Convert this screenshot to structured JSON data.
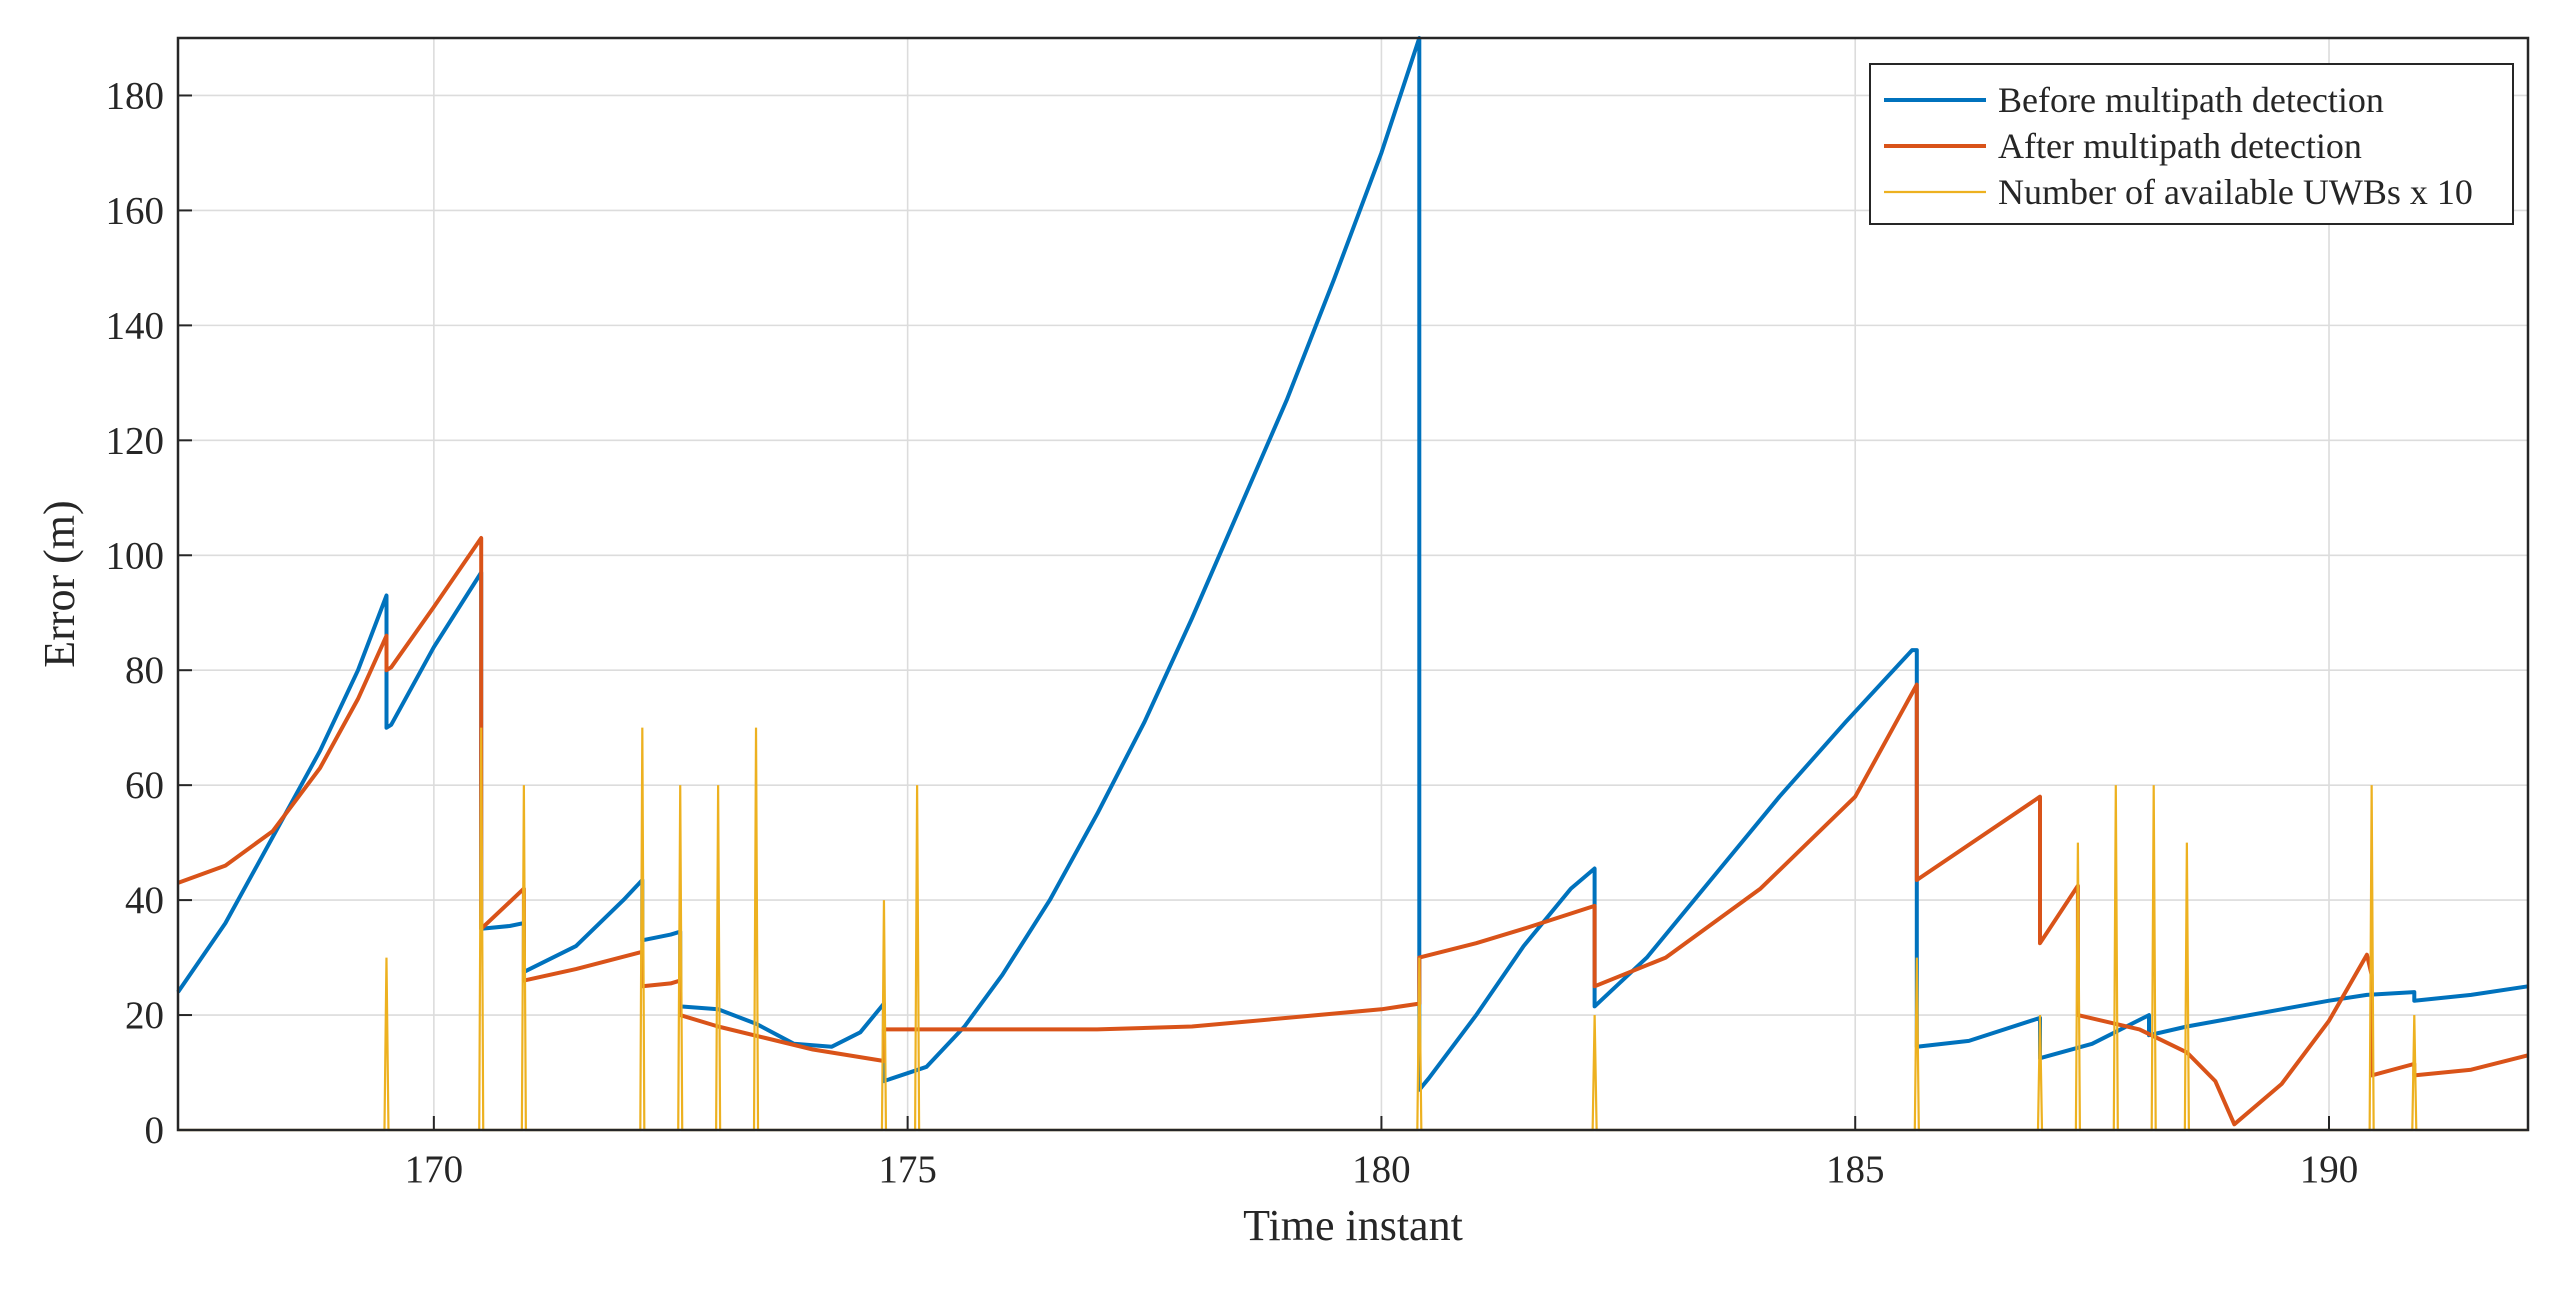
{
  "chart_data": {
    "type": "line",
    "title": "",
    "xlabel": "Time instant",
    "ylabel": "Error (m)",
    "xlim": [
      167.3,
      192.1
    ],
    "ylim": [
      0,
      190
    ],
    "xticks": [
      170,
      175,
      180,
      185,
      190
    ],
    "yticks": [
      0,
      20,
      40,
      60,
      80,
      100,
      120,
      140,
      160,
      180
    ],
    "grid": true,
    "legend_position": "top-right",
    "series": [
      {
        "name": "Before multipath detection",
        "color": "#0072BD",
        "x": [
          167.3,
          167.8,
          168.3,
          168.8,
          169.2,
          169.5,
          169.5,
          169.55,
          170.0,
          170.5,
          170.5,
          170.8,
          170.95,
          170.95,
          171.5,
          172.0,
          172.2,
          172.2,
          172.5,
          172.6,
          172.6,
          173.0,
          173.4,
          173.8,
          174.2,
          174.5,
          174.75,
          174.75,
          175.2,
          175.6,
          176.0,
          176.5,
          177.0,
          177.5,
          178.0,
          178.5,
          179.0,
          179.5,
          180.0,
          180.4,
          180.4,
          180.5,
          181.0,
          181.5,
          182.0,
          182.25,
          182.25,
          182.8,
          183.5,
          184.2,
          184.9,
          185.6,
          185.65,
          185.65,
          186.2,
          186.95,
          186.95,
          187.5,
          188.1,
          188.1,
          188.5,
          189.0,
          189.5,
          190.0,
          190.4,
          190.9,
          190.9,
          191.5,
          192.1
        ],
        "y": [
          24,
          36,
          51,
          66,
          80,
          93,
          70,
          70.5,
          84,
          97,
          35,
          35.5,
          36,
          27.5,
          32,
          40,
          43.5,
          33,
          34,
          34.5,
          21.5,
          21,
          18.5,
          15,
          14.5,
          17,
          22,
          8.5,
          11,
          18,
          27,
          40,
          55,
          71,
          89,
          108,
          127,
          148,
          170,
          190,
          7,
          9,
          20,
          32,
          42,
          45.5,
          21.5,
          30,
          44,
          58,
          71,
          83.5,
          83.5,
          14.5,
          15.5,
          19.5,
          12.5,
          15,
          20,
          16.5,
          18,
          19.5,
          21,
          22.5,
          23.5,
          24,
          22.5,
          23.5,
          25
        ]
      },
      {
        "name": "After multipath detection",
        "color": "#D95319",
        "x": [
          167.3,
          167.8,
          168.3,
          168.8,
          169.2,
          169.5,
          169.5,
          169.55,
          170.0,
          170.5,
          170.5,
          170.95,
          170.95,
          171.5,
          172.2,
          172.2,
          172.5,
          172.6,
          172.6,
          173.0,
          173.5,
          174.0,
          174.75,
          174.75,
          175.2,
          176.0,
          177.0,
          178.0,
          179.0,
          180.0,
          180.4,
          180.4,
          181.0,
          181.5,
          182.25,
          182.25,
          183.0,
          184.0,
          185.0,
          185.65,
          185.65,
          186.95,
          186.95,
          187.35,
          187.35,
          188.0,
          188.5,
          188.8,
          189.0,
          189.5,
          190.0,
          190.4,
          190.45,
          190.45,
          190.9,
          190.9,
          191.5,
          192.1
        ],
        "y": [
          43,
          46,
          52,
          63,
          75,
          86,
          80,
          80.5,
          91,
          103,
          35,
          42,
          26,
          28,
          31,
          25,
          25.5,
          26,
          20,
          18,
          16,
          14,
          12,
          17.5,
          17.5,
          17.5,
          17.5,
          18,
          19.5,
          21,
          22,
          30,
          32.5,
          35,
          39,
          25,
          30,
          42,
          58,
          77.5,
          43.5,
          58,
          32.5,
          42.5,
          20,
          17.5,
          13.5,
          8.5,
          1,
          8,
          19,
          30.5,
          27,
          9.5,
          11.5,
          9.5,
          10.5,
          13
        ]
      },
      {
        "name": "Number of available UWBs x 10",
        "color": "#EDB120",
        "spikes": [
          {
            "x": 169.5,
            "y": 30
          },
          {
            "x": 170.5,
            "y": 70
          },
          {
            "x": 170.95,
            "y": 60
          },
          {
            "x": 172.2,
            "y": 70
          },
          {
            "x": 172.6,
            "y": 60
          },
          {
            "x": 173.0,
            "y": 60
          },
          {
            "x": 173.4,
            "y": 70
          },
          {
            "x": 174.75,
            "y": 40
          },
          {
            "x": 175.1,
            "y": 60
          },
          {
            "x": 180.4,
            "y": 30
          },
          {
            "x": 182.25,
            "y": 20
          },
          {
            "x": 185.65,
            "y": 30
          },
          {
            "x": 186.95,
            "y": 20
          },
          {
            "x": 187.35,
            "y": 50
          },
          {
            "x": 187.75,
            "y": 60
          },
          {
            "x": 188.15,
            "y": 60
          },
          {
            "x": 188.5,
            "y": 50
          },
          {
            "x": 190.45,
            "y": 60
          },
          {
            "x": 190.9,
            "y": 20
          }
        ]
      }
    ]
  }
}
